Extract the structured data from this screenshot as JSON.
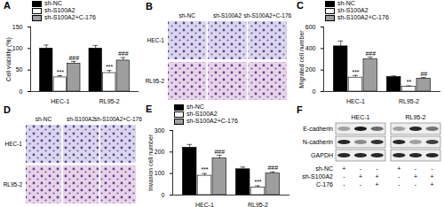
{
  "chart_data": [
    {
      "type": "bar",
      "title": "A",
      "ylabel": "Cell viability (%)",
      "categories": [
        "HEC-1",
        "RL95-2"
      ],
      "series": [
        {
          "name": "sh-NC",
          "color": "#000000",
          "values": [
            100,
            100
          ],
          "errors": [
            8,
            7
          ]
        },
        {
          "name": "sh-S100A2",
          "color": "#ffffff",
          "values": [
            33,
            43
          ],
          "errors": [
            4,
            6
          ],
          "significance": [
            "***",
            "***"
          ]
        },
        {
          "name": "sh-S100A2+C-176",
          "color": "#9e9e9e",
          "values": [
            65,
            72
          ],
          "errors": [
            5,
            7
          ],
          "significance": [
            "###",
            "###"
          ]
        }
      ],
      "ylim": [
        0,
        150
      ],
      "yticks": [
        0,
        50,
        100,
        150
      ],
      "legend": "top-left"
    },
    {
      "type": "bar",
      "title": "C",
      "ylabel": "Migrated cell number",
      "categories": [
        "HEC-1",
        "RL95-2"
      ],
      "series": [
        {
          "name": "sh-NC",
          "color": "#000000",
          "values": [
            420,
            135
          ],
          "errors": [
            50,
            10
          ]
        },
        {
          "name": "sh-S100A2",
          "color": "#ffffff",
          "values": [
            130,
            45
          ],
          "errors": [
            20,
            8
          ],
          "significance": [
            "***",
            "**"
          ]
        },
        {
          "name": "sh-S100A2+C-176",
          "color": "#9e9e9e",
          "values": [
            300,
            120
          ],
          "errors": [
            20,
            10
          ],
          "significance": [
            "###",
            "##"
          ]
        }
      ],
      "ylim": [
        0,
        600
      ],
      "yticks": [
        0,
        200,
        400,
        600
      ],
      "legend": "top-left"
    },
    {
      "type": "bar",
      "title": "E",
      "ylabel": "Invasion cell number",
      "categories": [
        "HEC-1",
        "RL95-2"
      ],
      "series": [
        {
          "name": "sh-NC",
          "color": "#000000",
          "values": [
            220,
            120
          ],
          "errors": [
            15,
            10
          ]
        },
        {
          "name": "sh-S100A2",
          "color": "#ffffff",
          "values": [
            90,
            35
          ],
          "errors": [
            10,
            8
          ],
          "significance": [
            "***",
            "***"
          ]
        },
        {
          "name": "sh-S100A2+C-176",
          "color": "#9e9e9e",
          "values": [
            170,
            100
          ],
          "errors": [
            15,
            8
          ],
          "significance": [
            "###",
            "###"
          ]
        }
      ],
      "ylim": [
        0,
        300
      ],
      "yticks": [
        0,
        100,
        200,
        300
      ],
      "legend": "top-left"
    }
  ],
  "panels": [
    {
      "type": "image_grid",
      "title": "B",
      "columns": [
        "sh-NC",
        "sh-S100A2",
        "sh-S100A2+C-176"
      ],
      "rows": [
        "HEC-1",
        "RL95-2"
      ]
    },
    {
      "type": "image_grid",
      "title": "D",
      "columns": [
        "sh-NC",
        "sh-S100A2",
        "sh-S100A2+C-176"
      ],
      "rows": [
        "HEC-1",
        "RL95-2"
      ]
    },
    {
      "type": "western_blot",
      "title": "F",
      "groups": [
        "HEC-1",
        "RL95-2"
      ],
      "bands": [
        {
          "name": "E-cadherin",
          "intensity": [
            [
              0.35,
              0.95,
              0.6
            ],
            [
              0.35,
              0.9,
              0.55
            ]
          ]
        },
        {
          "name": "N-cadherin",
          "intensity": [
            [
              0.9,
              0.45,
              0.85
            ],
            [
              0.9,
              0.35,
              0.8
            ]
          ]
        },
        {
          "name": "GAPDH",
          "intensity": [
            [
              0.9,
              0.9,
              0.9
            ],
            [
              0.9,
              0.9,
              0.9
            ]
          ]
        }
      ],
      "conditions": [
        {
          "name": "sh-NC",
          "marks": [
            "+",
            "-",
            "-",
            "+",
            "-",
            "-"
          ]
        },
        {
          "name": "sh-S100A2",
          "marks": [
            "-",
            "+",
            "+",
            "-",
            "+",
            "+"
          ]
        },
        {
          "name": "C-176",
          "marks": [
            "-",
            "-",
            "+",
            "-",
            "-",
            "+"
          ]
        }
      ]
    }
  ]
}
